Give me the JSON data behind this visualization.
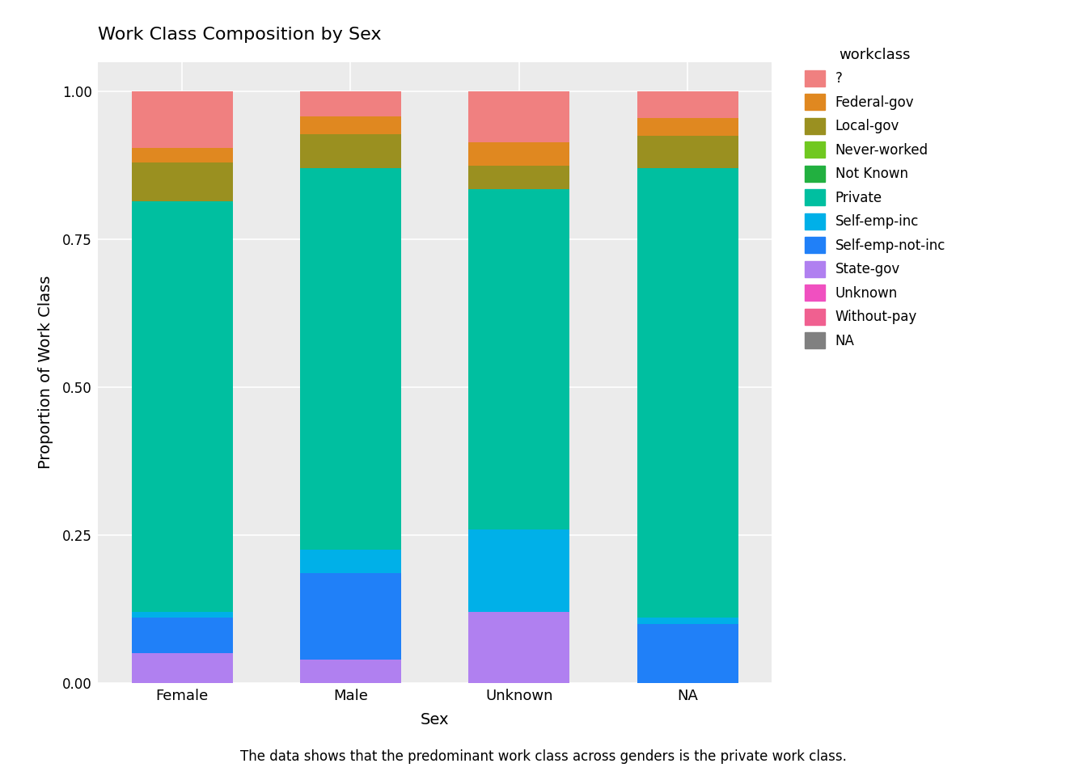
{
  "title": "Work Class Composition by Sex",
  "xlabel": "Sex",
  "ylabel": "Proportion of Work Class",
  "caption": "The data shows that the predominant work class across genders is the private work class.",
  "categories": [
    "Female",
    "Male",
    "Unknown",
    "NA"
  ],
  "colors": {
    "?": "#F08080",
    "Federal-gov": "#E08820",
    "Local-gov": "#9A9020",
    "Never-worked": "#70C820",
    "Not Known": "#22B040",
    "Private": "#00BFA0",
    "Self-emp-inc": "#00B0E8",
    "Self-emp-not-inc": "#2080F8",
    "State-gov": "#B080F0",
    "Unknown": "#F050C0",
    "Without-pay": "#F06090",
    "NA": "#808080"
  },
  "data": {
    "Female": {
      "NA": 0.0,
      "Without-pay": 0.0,
      "Unknown": 0.0,
      "State-gov": 0.05,
      "Self-emp-not-inc": 0.06,
      "Self-emp-inc": 0.01,
      "Private": 0.695,
      "Not Known": 0.0,
      "Never-worked": 0.0,
      "Local-gov": 0.065,
      "Federal-gov": 0.025,
      "?": 0.095
    },
    "Male": {
      "NA": 0.0,
      "Without-pay": 0.0,
      "Unknown": 0.0,
      "State-gov": 0.04,
      "Self-emp-not-inc": 0.145,
      "Self-emp-inc": 0.04,
      "Private": 0.645,
      "Not Known": 0.0,
      "Never-worked": 0.0,
      "Local-gov": 0.058,
      "Federal-gov": 0.03,
      "?": 0.042
    },
    "Unknown": {
      "NA": 0.0,
      "Without-pay": 0.0,
      "Unknown": 0.0,
      "State-gov": 0.12,
      "Self-emp-not-inc": 0.0,
      "Self-emp-inc": 0.14,
      "Private": 0.575,
      "Not Known": 0.0,
      "Never-worked": 0.0,
      "Local-gov": 0.04,
      "Federal-gov": 0.04,
      "?": 0.085
    },
    "NA": {
      "NA": 0.0,
      "Without-pay": 0.0,
      "Unknown": 0.0,
      "State-gov": 0.0,
      "Self-emp-not-inc": 0.1,
      "Self-emp-inc": 0.01,
      "Private": 0.76,
      "Not Known": 0.0,
      "Never-worked": 0.0,
      "Local-gov": 0.055,
      "Federal-gov": 0.03,
      "?": 0.045
    }
  },
  "legend_order": [
    "?",
    "Federal-gov",
    "Local-gov",
    "Never-worked",
    "Not Known",
    "Private",
    "Self-emp-inc",
    "Self-emp-not-inc",
    "State-gov",
    "Unknown",
    "Without-pay",
    "NA"
  ],
  "stack_order": [
    "NA",
    "Without-pay",
    "Unknown",
    "State-gov",
    "Self-emp-not-inc",
    "Self-emp-inc",
    "Private",
    "Not Known",
    "Never-worked",
    "Local-gov",
    "Federal-gov",
    "?"
  ],
  "background_color": "#EBEBEB",
  "panel_bg": "#DCDCDC",
  "grid_color": "#FFFFFF",
  "ylim": [
    0,
    1.05
  ],
  "bar_width": 0.6
}
